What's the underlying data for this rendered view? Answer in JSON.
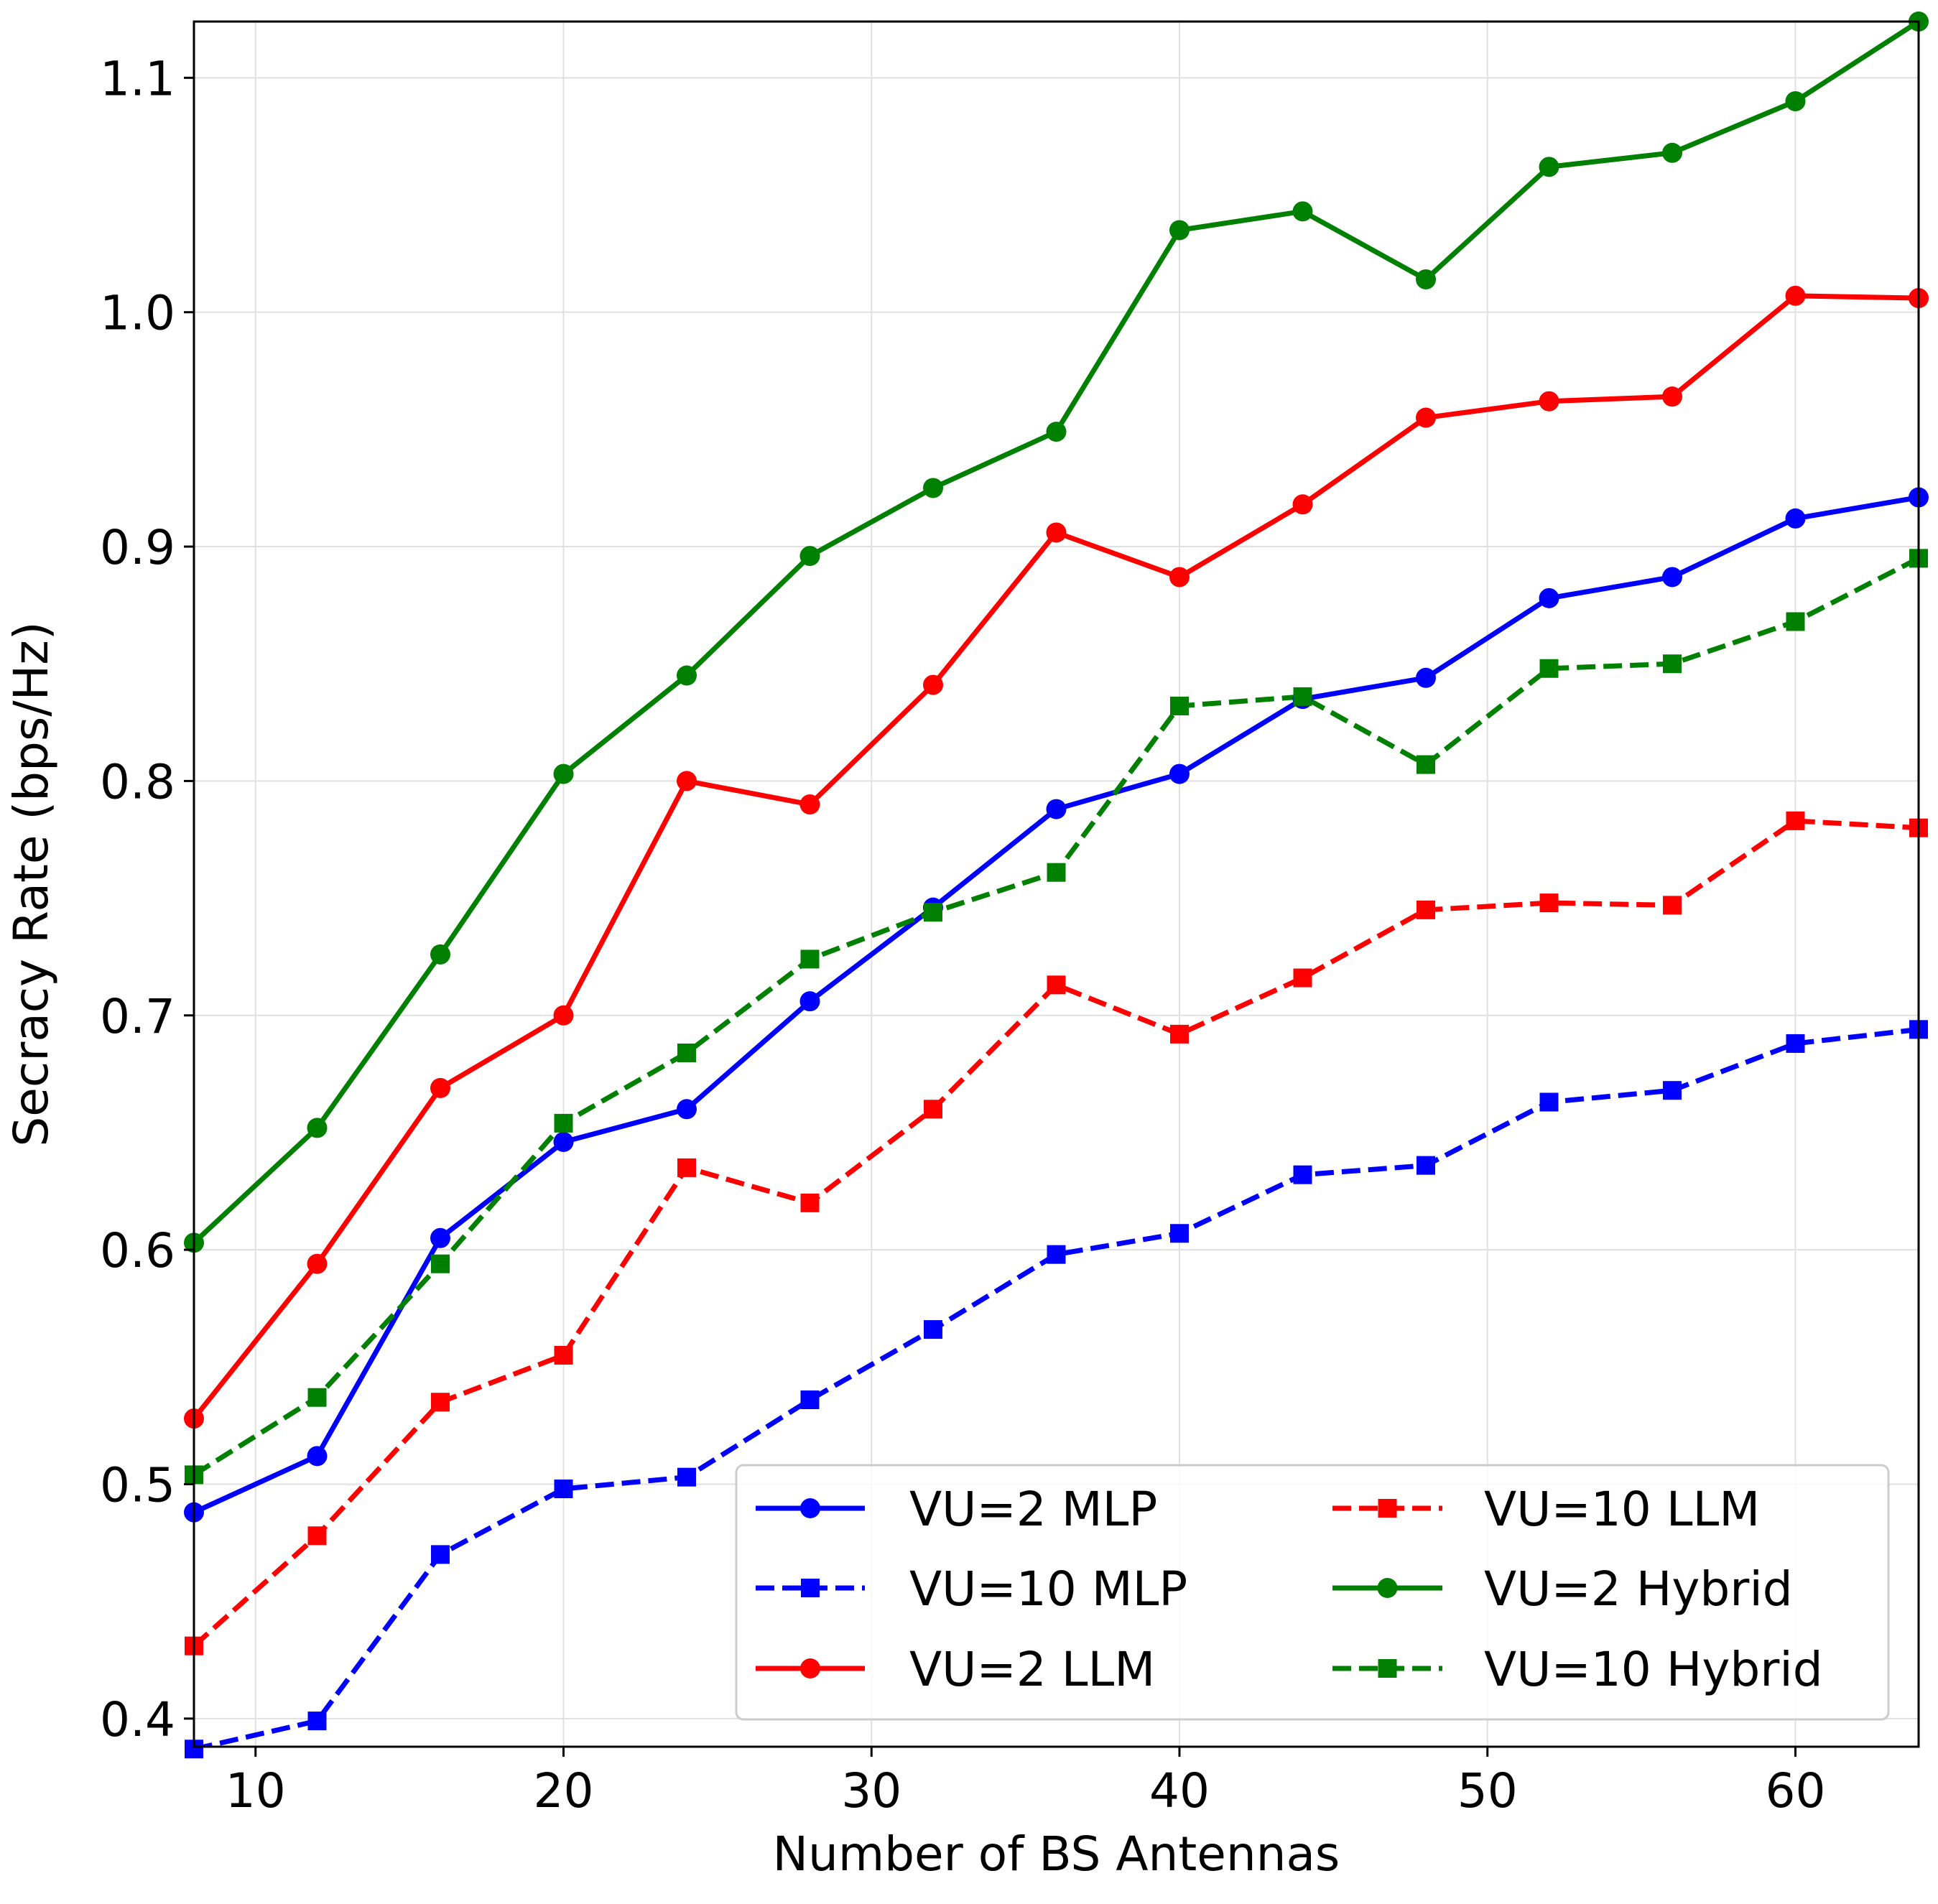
{
  "chart_data": {
    "type": "line",
    "title": "",
    "xlabel": "Number of BS Antennas",
    "ylabel": "Secracy Rate (bps/Hz)",
    "xlim": [
      8,
      64
    ],
    "ylim": [
      0.388,
      1.124
    ],
    "xticks": [
      10,
      20,
      30,
      40,
      50,
      60
    ],
    "yticks": [
      0.4,
      0.5,
      0.6,
      0.7,
      0.8,
      0.9,
      1.0,
      1.1
    ],
    "xtick_labels": [
      "10",
      "20",
      "30",
      "40",
      "50",
      "60"
    ],
    "ytick_labels": [
      "0.4",
      "0.5",
      "0.6",
      "0.7",
      "0.8",
      "0.9",
      "1.0",
      "1.1"
    ],
    "grid": true,
    "legend_position": "lower-right",
    "legend_columns": 2,
    "x": [
      8,
      12,
      16,
      20,
      24,
      28,
      32,
      36,
      40,
      44,
      48,
      52,
      56,
      60,
      64
    ],
    "series": [
      {
        "name": "VU=2 MLP",
        "color": "#0000ff",
        "dash": "solid",
        "marker": "circle",
        "values": [
          0.488,
          0.512,
          0.605,
          0.646,
          0.66,
          0.706,
          0.746,
          0.788,
          0.803,
          0.835,
          0.844,
          0.878,
          0.887,
          0.912,
          0.921
        ]
      },
      {
        "name": "VU=10 MLP",
        "color": "#0000ff",
        "dash": "dashed",
        "marker": "square",
        "values": [
          0.387,
          0.399,
          0.47,
          0.498,
          0.503,
          0.536,
          0.566,
          0.598,
          0.607,
          0.632,
          0.636,
          0.663,
          0.668,
          0.688,
          0.694
        ]
      },
      {
        "name": "VU=2 LLM",
        "color": "#ff0000",
        "dash": "solid",
        "marker": "circle",
        "values": [
          0.528,
          0.594,
          0.669,
          0.7,
          0.8,
          0.79,
          0.841,
          0.906,
          0.887,
          0.918,
          0.955,
          0.962,
          0.964,
          1.007,
          1.006
        ]
      },
      {
        "name": "VU=10 LLM",
        "color": "#ff0000",
        "dash": "dashed",
        "marker": "square",
        "values": [
          0.431,
          0.478,
          0.535,
          0.555,
          0.635,
          0.62,
          0.66,
          0.713,
          0.692,
          0.716,
          0.745,
          0.748,
          0.747,
          0.783,
          0.78
        ]
      },
      {
        "name": "VU=2 Hybrid",
        "color": "#008000",
        "dash": "solid",
        "marker": "circle",
        "values": [
          0.603,
          0.652,
          0.726,
          0.803,
          0.845,
          0.896,
          0.925,
          0.949,
          1.035,
          1.043,
          1.014,
          1.062,
          1.068,
          1.09,
          1.124
        ]
      },
      {
        "name": "VU=10 Hybrid",
        "color": "#008000",
        "dash": "dashed",
        "marker": "square",
        "values": [
          0.504,
          0.537,
          0.594,
          0.654,
          0.684,
          0.724,
          0.744,
          0.761,
          0.832,
          0.836,
          0.807,
          0.848,
          0.85,
          0.868,
          0.895
        ]
      }
    ]
  }
}
